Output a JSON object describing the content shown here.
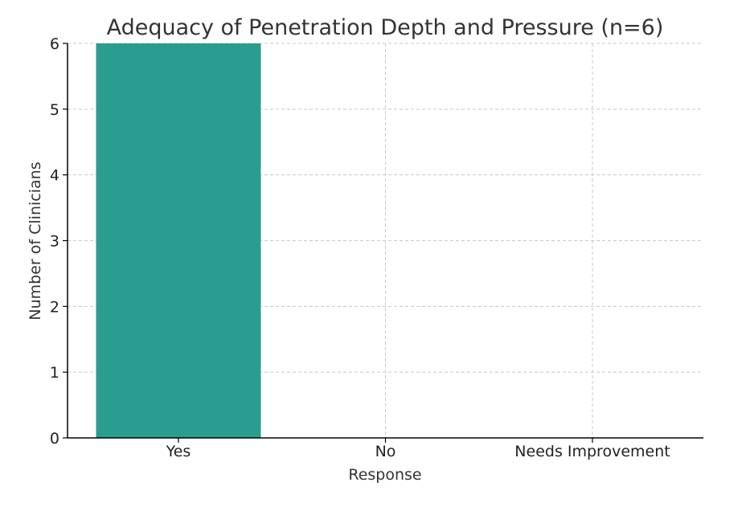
{
  "chart_data": {
    "type": "bar",
    "title": "Adequacy of Penetration Depth and Pressure (n=6)",
    "xlabel": "Response",
    "ylabel": "Number of Clinicians",
    "categories": [
      "Yes",
      "No",
      "Needs Improvement"
    ],
    "values": [
      6,
      0,
      0
    ],
    "ylim": [
      0,
      6
    ],
    "yticks": [
      "0",
      "1",
      "2",
      "3",
      "4",
      "5",
      "6"
    ],
    "bar_color": "#2a9d8f",
    "grid": true
  }
}
